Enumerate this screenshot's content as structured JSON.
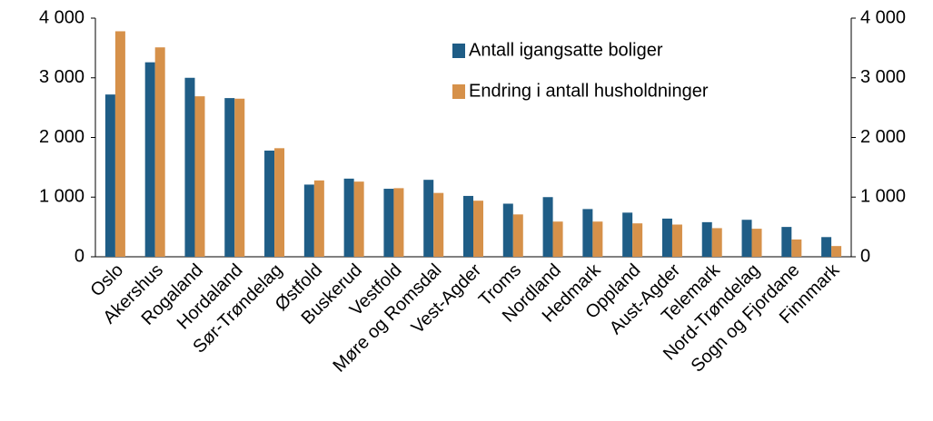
{
  "chart_data": {
    "type": "bar",
    "categories": [
      "Oslo",
      "Akershus",
      "Rogaland",
      "Hordaland",
      "Sør-Trøndelag",
      "Østfold",
      "Buskerud",
      "Vestfold",
      "Møre og Romsdal",
      "Vest-Agder",
      "Troms",
      "Nordland",
      "Hedmark",
      "Oppland",
      "Aust-Agder",
      "Telemark",
      "Nord-Trøndelag",
      "Sogn og Fjordane",
      "Finnmark"
    ],
    "series": [
      {
        "name": "Antall igangsatte boliger",
        "color": "#1f5d86",
        "values": [
          2720,
          3260,
          3000,
          2660,
          1780,
          1210,
          1310,
          1140,
          1290,
          1020,
          890,
          1000,
          800,
          740,
          640,
          580,
          620,
          500,
          330
        ]
      },
      {
        "name": "Endring i antall husholdninger",
        "color": "#d6914a",
        "values": [
          3780,
          3510,
          2690,
          2650,
          1820,
          1280,
          1260,
          1150,
          1070,
          940,
          710,
          590,
          590,
          560,
          540,
          480,
          470,
          290,
          180
        ]
      }
    ],
    "ylim": [
      0,
      4000
    ],
    "yticks": [
      0,
      {
        "value": 1000,
        "label": "1 000"
      },
      {
        "value": 2000,
        "label": "2 000"
      },
      {
        "value": 3000,
        "label": "3 000"
      },
      {
        "value": 4000,
        "label": "4 000"
      }
    ],
    "y2lim": [
      0,
      4000
    ],
    "y2ticks": [
      0,
      {
        "value": 1000,
        "label": "1 000"
      },
      {
        "value": 2000,
        "label": "2 000"
      },
      {
        "value": 3000,
        "label": "3 000"
      },
      {
        "value": 4000,
        "label": "4 000"
      }
    ],
    "legend": "upper-right"
  }
}
